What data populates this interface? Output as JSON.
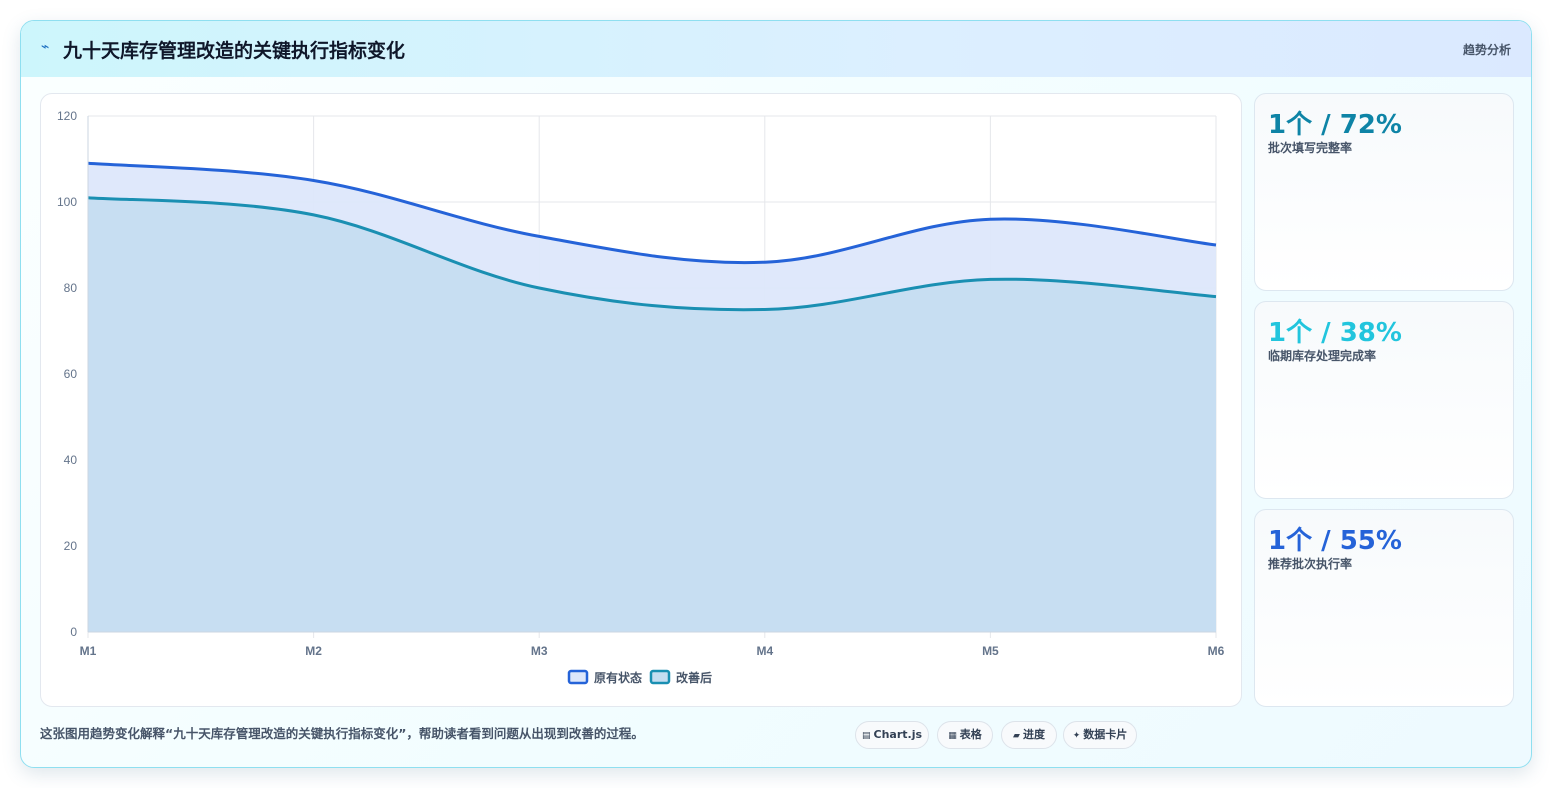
{
  "header": {
    "icon": "bolt-icon",
    "icon_glyph": "⌁",
    "title": "九十天库存管理改造的关键执行指标变化",
    "tag": "趋势分析"
  },
  "chart_data": {
    "type": "area",
    "categories": [
      "M1",
      "M2",
      "M3",
      "M4",
      "M5",
      "M6"
    ],
    "series": [
      {
        "name": "原有状态",
        "values": [
          109,
          105,
          92,
          86,
          96,
          90
        ],
        "color": "#2563d8",
        "fill": "#dde7fb"
      },
      {
        "name": "改善后",
        "values": [
          101,
          97,
          80,
          75,
          82,
          78
        ],
        "color": "#1a8fb2",
        "fill": "#c5ddf1"
      }
    ],
    "ylim": [
      0,
      120
    ],
    "yticks": [
      0,
      20,
      40,
      60,
      80,
      100,
      120
    ],
    "grid": true,
    "legend_position": "bottom-center"
  },
  "sidecards": [
    {
      "value": "1个 / 72%",
      "label": "批次填写完整率",
      "color": "#0e84a6"
    },
    {
      "value": "1个 / 38%",
      "label": "临期库存处理完成率",
      "color": "#22c5dd"
    },
    {
      "value": "1个 / 55%",
      "label": "推荐批次执行率",
      "color": "#2563d8"
    }
  ],
  "footnote": "这张图用趋势变化解释“九十天库存管理改造的关键执行指标变化”，帮助读者看到问题从出现到改善的过程。",
  "chips": [
    {
      "icon": "chart-icon",
      "glyph": "▤",
      "label": "Chart.js"
    },
    {
      "icon": "table-icon",
      "glyph": "▦",
      "label": "表格"
    },
    {
      "icon": "progress-icon",
      "glyph": "▰",
      "label": "进度"
    },
    {
      "icon": "sparkle-icon",
      "glyph": "✦",
      "label": "数据卡片"
    }
  ]
}
